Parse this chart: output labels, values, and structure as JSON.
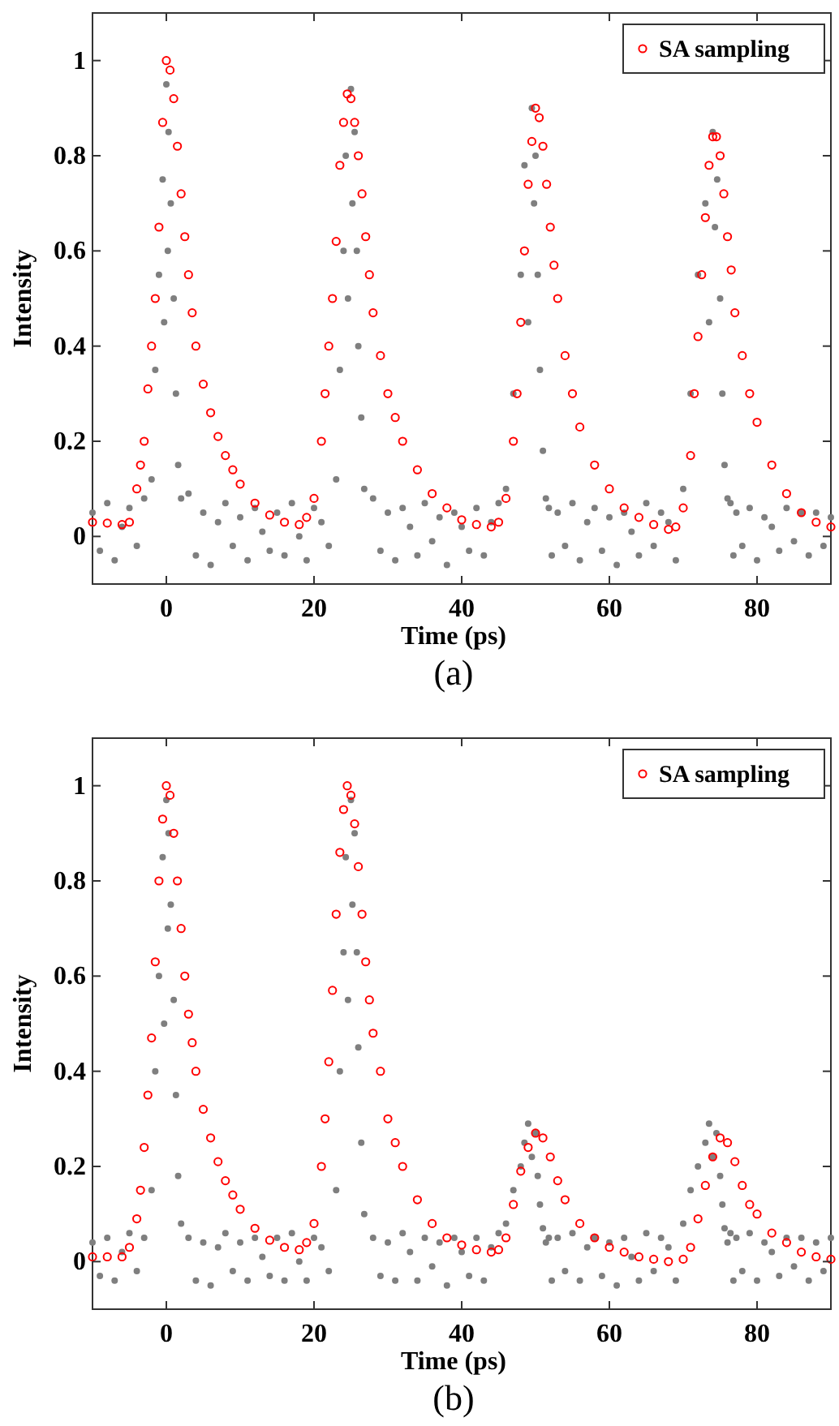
{
  "chart_data": [
    {
      "type": "scatter",
      "xlabel": "Time (ps)",
      "ylabel": "Intensity",
      "xlim": [
        -10,
        90
      ],
      "ylim": [
        -0.1,
        1.1
      ],
      "xticks": [
        0,
        20,
        40,
        60,
        80
      ],
      "yticks": [
        0,
        0.2,
        0.4,
        0.6,
        0.8,
        1
      ],
      "legend": "top right",
      "annotations": [
        "(a)"
      ],
      "series": [
        {
          "color": "#7f7f7f",
          "x": [
            -10,
            -9,
            -8,
            -7,
            -6,
            -5,
            -4,
            -3,
            -2,
            -1.5,
            -1,
            -0.5,
            -0.3,
            0,
            0.2,
            0.3,
            0.6,
            1,
            1.3,
            1.6,
            2,
            3,
            4,
            5,
            6,
            7,
            8,
            9,
            10,
            11,
            12,
            13,
            14,
            15,
            16,
            17,
            18,
            19,
            20,
            21,
            22,
            23,
            23.5,
            24,
            24.3,
            24.6,
            25,
            25.2,
            25.5,
            25.8,
            26,
            26.4,
            26.8,
            28,
            29,
            30,
            31,
            32,
            33,
            34,
            35,
            36,
            37,
            38,
            39,
            40,
            41,
            42,
            43,
            44,
            45,
            46,
            47,
            48,
            48.5,
            49,
            49.5,
            49.8,
            50,
            50.3,
            50.6,
            51,
            51.4,
            51.8,
            52.2,
            53,
            54,
            55,
            56,
            57,
            58,
            59,
            60,
            61,
            62,
            63,
            64,
            65,
            66,
            67,
            68,
            69,
            70,
            71,
            72,
            73,
            73.5,
            74,
            74.3,
            74.6,
            75,
            75.3,
            75.6,
            76,
            76.4,
            76.8,
            77.2,
            78,
            79,
            80,
            81,
            82,
            83,
            84,
            85,
            86,
            87,
            88,
            89,
            90
          ],
          "values": [
            0.05,
            -0.03,
            0.07,
            -0.05,
            0.02,
            0.06,
            -0.02,
            0.08,
            0.12,
            0.35,
            0.55,
            0.75,
            0.45,
            0.95,
            0.6,
            0.85,
            0.7,
            0.5,
            0.3,
            0.15,
            0.08,
            0.09,
            -0.04,
            0.05,
            -0.06,
            0.03,
            0.07,
            -0.02,
            0.04,
            -0.05,
            0.06,
            0.01,
            -0.03,
            0.05,
            -0.04,
            0.07,
            0,
            -0.05,
            0.06,
            0.03,
            -0.02,
            0.12,
            0.35,
            0.6,
            0.8,
            0.5,
            0.94,
            0.7,
            0.85,
            0.6,
            0.4,
            0.25,
            0.1,
            0.08,
            -0.03,
            0.05,
            -0.05,
            0.06,
            0.02,
            -0.04,
            0.07,
            -0.01,
            0.04,
            -0.06,
            0.05,
            0.02,
            -0.03,
            0.06,
            -0.04,
            0.03,
            0.07,
            0.1,
            0.3,
            0.55,
            0.78,
            0.45,
            0.9,
            0.7,
            0.8,
            0.55,
            0.35,
            0.18,
            0.08,
            0.06,
            -0.04,
            0.05,
            -0.02,
            0.07,
            -0.05,
            0.03,
            0.06,
            -0.03,
            0.04,
            -0.06,
            0.05,
            0.01,
            -0.04,
            0.07,
            -0.02,
            0.05,
            0.03,
            -0.05,
            0.1,
            0.3,
            0.55,
            0.7,
            0.45,
            0.85,
            0.65,
            0.75,
            0.5,
            0.3,
            0.15,
            0.08,
            0.07,
            -0.04,
            0.05,
            -0.02,
            0.06,
            -0.05,
            0.04,
            0.02,
            -0.03,
            0.06,
            -0.01,
            0.05,
            -0.04,
            0.05,
            -0.02,
            0.04
          ]
        },
        {
          "name": "SA sampling",
          "color": "#ff0000",
          "marker": "circle",
          "x": [
            -10,
            -8,
            -6,
            -5,
            -4,
            -3.5,
            -3,
            -2.5,
            -2,
            -1.5,
            -1,
            -0.5,
            0,
            0.5,
            1,
            1.5,
            2,
            2.5,
            3,
            3.5,
            4,
            5,
            6,
            7,
            8,
            9,
            10,
            12,
            14,
            16,
            18,
            19,
            20,
            21,
            21.5,
            22,
            22.5,
            23,
            23.5,
            24,
            24.5,
            25,
            25.5,
            26,
            26.5,
            27,
            27.5,
            28,
            29,
            30,
            31,
            32,
            34,
            36,
            38,
            40,
            42,
            44,
            45,
            46,
            47,
            47.5,
            48,
            48.5,
            49,
            49.5,
            50,
            50.5,
            51,
            51.5,
            52,
            52.5,
            53,
            54,
            55,
            56,
            58,
            60,
            62,
            64,
            66,
            68,
            69,
            70,
            71,
            71.5,
            72,
            72.5,
            73,
            73.5,
            74,
            74.5,
            75,
            75.5,
            76,
            76.5,
            77,
            78,
            79,
            80,
            82,
            84,
            86,
            88,
            90
          ],
          "values": [
            0.03,
            0.028,
            0.025,
            0.03,
            0.1,
            0.15,
            0.2,
            0.31,
            0.4,
            0.5,
            0.65,
            0.87,
            1,
            0.98,
            0.92,
            0.82,
            0.72,
            0.63,
            0.55,
            0.47,
            0.4,
            0.32,
            0.26,
            0.21,
            0.17,
            0.14,
            0.11,
            0.07,
            0.045,
            0.03,
            0.025,
            0.04,
            0.08,
            0.2,
            0.3,
            0.4,
            0.5,
            0.62,
            0.78,
            0.87,
            0.93,
            0.92,
            0.87,
            0.8,
            0.72,
            0.63,
            0.55,
            0.47,
            0.38,
            0.3,
            0.25,
            0.2,
            0.14,
            0.09,
            0.06,
            0.035,
            0.025,
            0.02,
            0.03,
            0.08,
            0.2,
            0.3,
            0.45,
            0.6,
            0.74,
            0.83,
            0.9,
            0.88,
            0.82,
            0.74,
            0.65,
            0.57,
            0.5,
            0.38,
            0.3,
            0.23,
            0.15,
            0.1,
            0.06,
            0.04,
            0.025,
            0.015,
            0.02,
            0.06,
            0.17,
            0.3,
            0.42,
            0.55,
            0.67,
            0.78,
            0.84,
            0.84,
            0.8,
            0.72,
            0.63,
            0.56,
            0.47,
            0.38,
            0.3,
            0.24,
            0.15,
            0.09,
            0.05,
            0.03,
            0.02
          ]
        }
      ]
    },
    {
      "type": "scatter",
      "xlabel": "Time (ps)",
      "ylabel": "Intensity",
      "xlim": [
        -10,
        90
      ],
      "ylim": [
        -0.1,
        1.1
      ],
      "xticks": [
        0,
        20,
        40,
        60,
        80
      ],
      "yticks": [
        0,
        0.2,
        0.4,
        0.6,
        0.8,
        1
      ],
      "legend": "top right",
      "annotations": [
        "(b)"
      ],
      "series": [
        {
          "color": "#7f7f7f",
          "x": [
            -10,
            -9,
            -8,
            -7,
            -6,
            -5,
            -4,
            -3,
            -2,
            -1.5,
            -1,
            -0.5,
            -0.3,
            0,
            0.2,
            0.3,
            0.6,
            1,
            1.3,
            1.6,
            2,
            3,
            4,
            5,
            6,
            7,
            8,
            9,
            10,
            11,
            12,
            13,
            14,
            15,
            16,
            17,
            18,
            19,
            20,
            21,
            22,
            23,
            23.5,
            24,
            24.3,
            24.6,
            25,
            25.2,
            25.5,
            25.8,
            26,
            26.4,
            26.8,
            28,
            29,
            30,
            31,
            32,
            33,
            34,
            35,
            36,
            37,
            38,
            39,
            40,
            41,
            42,
            43,
            44,
            45,
            46,
            47,
            48,
            48.5,
            49,
            49.5,
            50,
            50.3,
            50.6,
            51,
            51.4,
            51.8,
            52.2,
            53,
            54,
            55,
            56,
            57,
            58,
            59,
            60,
            61,
            62,
            63,
            64,
            65,
            66,
            67,
            68,
            69,
            70,
            71,
            72,
            73,
            73.5,
            74,
            74.5,
            75,
            75.3,
            75.6,
            76,
            76.4,
            76.8,
            77.2,
            78,
            79,
            80,
            81,
            82,
            83,
            84,
            85,
            86,
            87,
            88,
            89,
            90
          ],
          "values": [
            0.04,
            -0.03,
            0.05,
            -0.04,
            0.02,
            0.06,
            -0.02,
            0.05,
            0.15,
            0.4,
            0.6,
            0.85,
            0.5,
            0.97,
            0.7,
            0.9,
            0.75,
            0.55,
            0.35,
            0.18,
            0.08,
            0.05,
            -0.04,
            0.04,
            -0.05,
            0.03,
            0.06,
            -0.02,
            0.04,
            -0.04,
            0.05,
            0.01,
            -0.03,
            0.05,
            -0.04,
            0.06,
            0,
            -0.04,
            0.05,
            0.03,
            -0.02,
            0.15,
            0.4,
            0.65,
            0.85,
            0.55,
            0.97,
            0.75,
            0.9,
            0.65,
            0.45,
            0.25,
            0.1,
            0.05,
            -0.03,
            0.04,
            -0.04,
            0.06,
            0.02,
            -0.04,
            0.05,
            -0.01,
            0.04,
            -0.05,
            0.05,
            0.02,
            -0.03,
            0.05,
            -0.04,
            0.03,
            0.06,
            0.08,
            0.15,
            0.2,
            0.25,
            0.29,
            0.22,
            0.27,
            0.18,
            0.12,
            0.07,
            0.04,
            0.05,
            -0.04,
            0.05,
            -0.02,
            0.06,
            -0.04,
            0.03,
            0.05,
            -0.03,
            0.04,
            -0.05,
            0.05,
            0.01,
            -0.04,
            0.06,
            -0.02,
            0.05,
            0.03,
            -0.04,
            0.08,
            0.15,
            0.2,
            0.25,
            0.29,
            0.22,
            0.27,
            0.18,
            0.12,
            0.07,
            0.04,
            0.06,
            -0.04,
            0.05,
            -0.02,
            0.06,
            -0.04,
            0.04,
            0.02,
            -0.03,
            0.05,
            -0.01,
            0.05,
            -0.04,
            0.04,
            -0.02,
            0.05
          ]
        },
        {
          "name": "SA sampling",
          "color": "#ff0000",
          "marker": "circle",
          "x": [
            -10,
            -8,
            -6,
            -5,
            -4,
            -3.5,
            -3,
            -2.5,
            -2,
            -1.5,
            -1,
            -0.5,
            0,
            0.5,
            1,
            1.5,
            2,
            2.5,
            3,
            3.5,
            4,
            5,
            6,
            7,
            8,
            9,
            10,
            12,
            14,
            16,
            18,
            19,
            20,
            21,
            21.5,
            22,
            22.5,
            23,
            23.5,
            24,
            24.5,
            25,
            25.5,
            26,
            26.5,
            27,
            27.5,
            28,
            29,
            30,
            31,
            32,
            34,
            36,
            38,
            40,
            42,
            44,
            45,
            46,
            47,
            48,
            49,
            50,
            51,
            52,
            53,
            54,
            56,
            58,
            60,
            62,
            64,
            66,
            68,
            70,
            71,
            72,
            73,
            74,
            75,
            76,
            77,
            78,
            79,
            80,
            82,
            84,
            86,
            88,
            90
          ],
          "values": [
            0.01,
            0.01,
            0.01,
            0.03,
            0.09,
            0.15,
            0.24,
            0.35,
            0.47,
            0.63,
            0.8,
            0.93,
            1,
            0.98,
            0.9,
            0.8,
            0.7,
            0.6,
            0.52,
            0.46,
            0.4,
            0.32,
            0.26,
            0.21,
            0.17,
            0.14,
            0.11,
            0.07,
            0.045,
            0.03,
            0.025,
            0.04,
            0.08,
            0.2,
            0.3,
            0.42,
            0.57,
            0.73,
            0.86,
            0.95,
            1,
            0.98,
            0.92,
            0.83,
            0.73,
            0.63,
            0.55,
            0.48,
            0.4,
            0.3,
            0.25,
            0.2,
            0.13,
            0.08,
            0.05,
            0.035,
            0.025,
            0.02,
            0.025,
            0.05,
            0.12,
            0.19,
            0.24,
            0.27,
            0.26,
            0.22,
            0.17,
            0.13,
            0.08,
            0.05,
            0.03,
            0.02,
            0.01,
            0.005,
            0,
            0.005,
            0.03,
            0.09,
            0.16,
            0.22,
            0.26,
            0.25,
            0.21,
            0.16,
            0.12,
            0.1,
            0.06,
            0.04,
            0.02,
            0.01,
            0.005
          ]
        }
      ]
    }
  ]
}
